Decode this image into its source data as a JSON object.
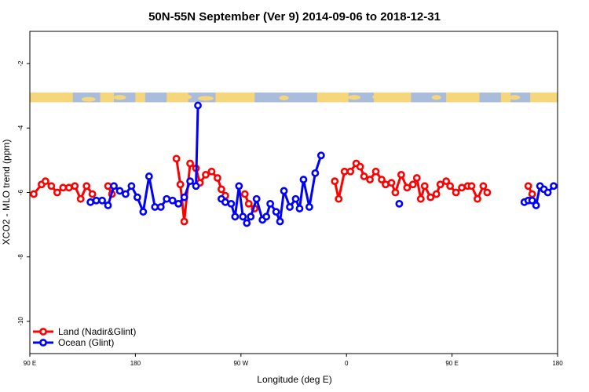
{
  "chart_data": {
    "type": "line",
    "title": "50N-55N September (Ver 9)   2014-09-06 to 2018-12-31",
    "xlabel": "Longitude (deg E)",
    "ylabel": "XCO2 - MLO trend (ppm)",
    "xlim": [
      -90,
      180
    ],
    "ylim": [
      -11,
      -1
    ],
    "x_ticks": [
      {
        "value": -90,
        "label": "90 E"
      },
      {
        "value": -36,
        "label": "180"
      },
      {
        "value": 18,
        "label": "90 W"
      },
      {
        "value": 72,
        "label": "0"
      },
      {
        "value": 126,
        "label": "90 E"
      },
      {
        "value": 180,
        "label": "180"
      }
    ],
    "y_ticks": [
      -2,
      -4,
      -6,
      -8,
      -10
    ],
    "land_ocean_strip": {
      "y_top": -2.9,
      "y_bottom": -3.2,
      "land_color": "#F5D67A",
      "ocean_color": "#A9BCDC"
    },
    "legend": {
      "position": "bottom-left"
    },
    "series": [
      {
        "name": "Land (Nadir&Glint)",
        "color": "#FF0000",
        "points": [
          [
            -88,
            -6.05
          ],
          [
            -84,
            -5.75
          ],
          [
            -82,
            -5.65
          ],
          [
            -79,
            -5.8
          ],
          [
            -76,
            -6.0
          ],
          [
            -73,
            -5.85
          ],
          [
            -70,
            -5.85
          ],
          [
            -67,
            -5.8
          ],
          [
            -64,
            -6.2
          ],
          [
            -61,
            -5.8
          ],
          [
            -58,
            -6.05
          ],
          [
            -50,
            -5.8
          ],
          [
            -48,
            -6.05
          ],
          [
            -15,
            -4.95
          ],
          [
            -13,
            -5.75
          ],
          [
            -11,
            -6.9
          ],
          [
            -8,
            -5.1
          ],
          [
            -5,
            -5.25
          ],
          [
            -3,
            -5.7
          ],
          [
            0,
            -5.45
          ],
          [
            3,
            -5.35
          ],
          [
            6,
            -5.55
          ],
          [
            8,
            -5.9
          ],
          [
            10,
            -6.1
          ],
          [
            20,
            -6.05
          ],
          [
            22,
            -6.35
          ],
          [
            25,
            -6.5
          ],
          [
            66,
            -5.65
          ],
          [
            68,
            -6.2
          ],
          [
            71,
            -5.35
          ],
          [
            74,
            -5.35
          ],
          [
            77,
            -5.1
          ],
          [
            79,
            -5.2
          ],
          [
            81,
            -5.5
          ],
          [
            84,
            -5.6
          ],
          [
            87,
            -5.35
          ],
          [
            90,
            -5.6
          ],
          [
            92,
            -5.75
          ],
          [
            95,
            -5.7
          ],
          [
            97,
            -6.0
          ],
          [
            100,
            -5.45
          ],
          [
            103,
            -5.85
          ],
          [
            106,
            -5.75
          ],
          [
            108,
            -5.55
          ],
          [
            110,
            -6.2
          ],
          [
            112,
            -5.8
          ],
          [
            115,
            -6.15
          ],
          [
            118,
            -6.05
          ],
          [
            120,
            -5.75
          ],
          [
            123,
            -5.65
          ],
          [
            125,
            -5.8
          ],
          [
            128,
            -6.0
          ],
          [
            131,
            -5.85
          ],
          [
            134,
            -5.8
          ],
          [
            136,
            -5.8
          ],
          [
            139,
            -6.2
          ],
          [
            142,
            -5.8
          ],
          [
            144,
            -6.0
          ],
          [
            165,
            -5.8
          ],
          [
            167,
            -6.05
          ]
        ]
      },
      {
        "name": "Ocean (Glint)",
        "color": "#0000FF",
        "points": [
          [
            -59,
            -6.3
          ],
          [
            -56,
            -6.25
          ],
          [
            -53,
            -6.25
          ],
          [
            -50,
            -6.4
          ],
          [
            -47,
            -5.8
          ],
          [
            -44,
            -5.95
          ],
          [
            -41,
            -6.05
          ],
          [
            -38,
            -5.8
          ],
          [
            -35,
            -6.15
          ],
          [
            -32,
            -6.6
          ],
          [
            -29,
            -5.5
          ],
          [
            -26,
            -6.45
          ],
          [
            -23,
            -6.45
          ],
          [
            -20,
            -6.2
          ],
          [
            -17,
            -6.25
          ],
          [
            -14,
            -6.35
          ],
          [
            -11,
            -6.15
          ],
          [
            -8,
            -5.65
          ],
          [
            -5,
            -5.8
          ],
          [
            -4,
            -3.3
          ],
          [
            8,
            -6.2
          ],
          [
            10,
            -6.3
          ],
          [
            13,
            -6.35
          ],
          [
            15,
            -6.75
          ],
          [
            17,
            -5.8
          ],
          [
            19,
            -6.75
          ],
          [
            21,
            -6.95
          ],
          [
            23,
            -6.75
          ],
          [
            26,
            -6.2
          ],
          [
            29,
            -6.85
          ],
          [
            31,
            -6.75
          ],
          [
            33,
            -6.35
          ],
          [
            36,
            -6.6
          ],
          [
            38,
            -6.9
          ],
          [
            40,
            -5.95
          ],
          [
            43,
            -6.45
          ],
          [
            46,
            -6.2
          ],
          [
            48,
            -6.5
          ],
          [
            50,
            -5.6
          ],
          [
            53,
            -6.45
          ],
          [
            56,
            -5.4
          ],
          [
            59,
            -4.85
          ],
          [
            99,
            -6.35
          ],
          [
            163,
            -6.3
          ],
          [
            165,
            -6.25
          ],
          [
            167,
            -6.25
          ],
          [
            169,
            -6.4
          ],
          [
            171,
            -5.8
          ],
          [
            173,
            -5.9
          ],
          [
            175,
            -6.0
          ],
          [
            178,
            -5.8
          ]
        ]
      }
    ]
  }
}
